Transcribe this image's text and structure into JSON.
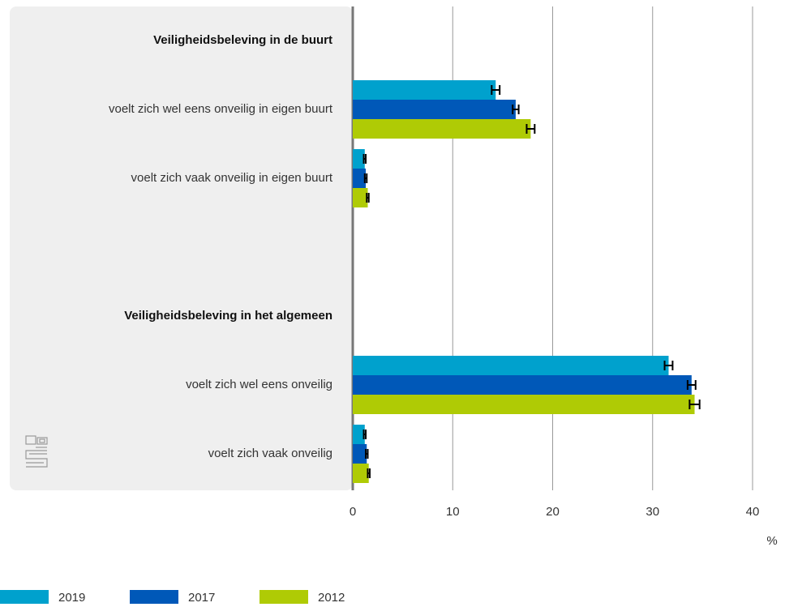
{
  "chart_data": {
    "type": "bar",
    "orientation": "horizontal",
    "categories": [
      "Veiligheidsbeleving in de buurt",
      "voelt zich wel eens onveilig in eigen buurt",
      "voelt zich vaak onveilig in eigen buurt",
      null,
      "Veiligheidsbeleving in het algemeen",
      "voelt zich wel eens onveilig",
      "voelt zich vaak onveilig"
    ],
    "series": [
      {
        "name": "2019",
        "color": "#00a1cd",
        "values": [
          null,
          14.3,
          1.2,
          null,
          null,
          31.6,
          1.2
        ],
        "errors": [
          null,
          0.4,
          0.1,
          null,
          null,
          0.4,
          0.1
        ]
      },
      {
        "name": "2017",
        "color": "#0058b8",
        "values": [
          null,
          16.3,
          1.3,
          null,
          null,
          33.9,
          1.4
        ],
        "errors": [
          null,
          0.3,
          0.1,
          null,
          null,
          0.4,
          0.1
        ]
      },
      {
        "name": "2012",
        "color": "#afcb05",
        "values": [
          null,
          17.8,
          1.5,
          null,
          null,
          34.2,
          1.6
        ],
        "errors": [
          null,
          0.4,
          0.1,
          null,
          null,
          0.5,
          0.1
        ]
      }
    ],
    "xlabel": "%",
    "xlim": [
      0,
      40
    ],
    "xticks": [
      0,
      10,
      20,
      30,
      40
    ],
    "grid": true,
    "legend": "bottom"
  }
}
